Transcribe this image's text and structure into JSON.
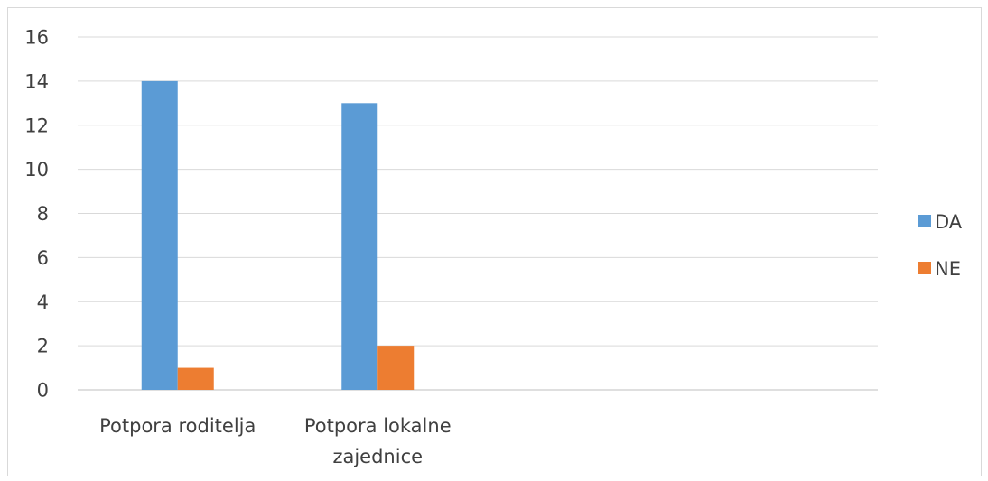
{
  "chart_data": {
    "type": "bar",
    "title": "",
    "xlabel": "",
    "ylabel": "",
    "categories": [
      [
        "Potpora roditelja"
      ],
      [
        "Potpora lokalne",
        "zajednice"
      ],
      [],
      []
    ],
    "series": [
      {
        "name": "DA",
        "color": "#5b9bd5",
        "values": [
          14,
          13,
          null,
          null
        ]
      },
      {
        "name": "NE",
        "color": "#ed7d31",
        "values": [
          1,
          2,
          null,
          null
        ]
      }
    ],
    "ylim": [
      0,
      16
    ],
    "yticks": [
      0,
      2,
      4,
      6,
      8,
      10,
      12,
      14,
      16
    ],
    "grid": true,
    "legend": "right"
  }
}
